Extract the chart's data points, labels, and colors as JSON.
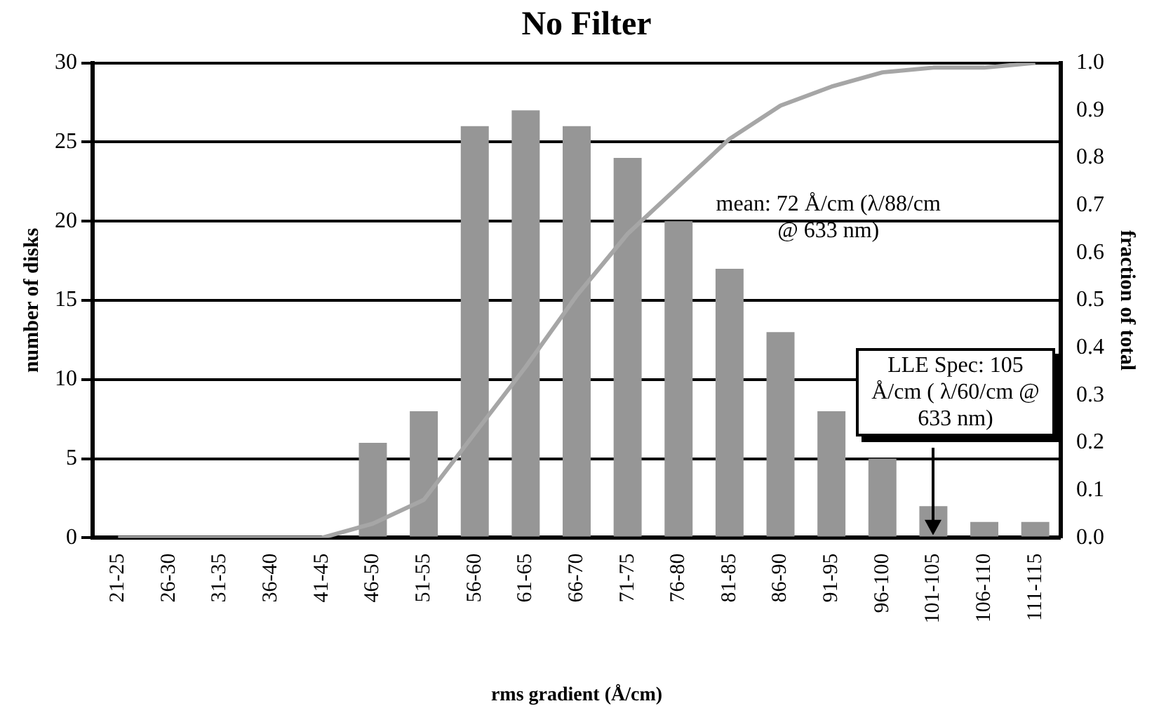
{
  "chart_data": {
    "type": "bar",
    "title": "No Filter",
    "xlabel": "rms gradient (Å/cm)",
    "ylabel": "number of disks",
    "y2label": "fraction of total",
    "categories": [
      "21-25",
      "26-30",
      "31-35",
      "36-40",
      "41-45",
      "46-50",
      "51-55",
      "56-60",
      "61-65",
      "66-70",
      "71-75",
      "76-80",
      "81-85",
      "86-90",
      "91-95",
      "96-100",
      "101-105",
      "106-110",
      "111-115"
    ],
    "series": [
      {
        "color": "#969696",
        "values": [
          0,
          0,
          0,
          0,
          0,
          6,
          8,
          26,
          27,
          26,
          24,
          20,
          17,
          13,
          8,
          5,
          2,
          1,
          1
        ]
      },
      {
        "type": "line",
        "axis": "y2",
        "color": "#a6a6a6",
        "values": [
          0,
          0,
          0,
          0,
          0,
          0.03,
          0.08,
          0.22,
          0.36,
          0.51,
          0.64,
          0.74,
          0.84,
          0.91,
          0.95,
          0.98,
          0.99,
          0.99,
          1.0
        ]
      }
    ],
    "ylim": [
      0,
      30
    ],
    "yticks": [
      0,
      5,
      10,
      15,
      20,
      25,
      30
    ],
    "y2lim": [
      0,
      1
    ],
    "y2ticks": [
      {
        "value": 0,
        "label": "0.0"
      },
      {
        "value": 0.1,
        "label": "0.1"
      },
      {
        "value": 0.2,
        "label": "0.2"
      },
      {
        "value": 0.3,
        "label": "0.3"
      },
      {
        "value": 0.4,
        "label": "0.4"
      },
      {
        "value": 0.5,
        "label": "0.5"
      },
      {
        "value": 0.6,
        "label": "0.6"
      },
      {
        "value": 0.7,
        "label": "0.7"
      },
      {
        "value": 0.8,
        "label": "0.8"
      },
      {
        "value": 0.9,
        "label": "0.9"
      },
      {
        "value": 1,
        "label": "1.0"
      }
    ],
    "grid": "y",
    "legend": false,
    "marker": "none",
    "line_style": "solid",
    "annotations": [
      "mean: 72 Å/cm (λ/88/cm @ 633 nm)",
      "LLE Spec: 105 Å/cm ( λ/60/cm @ 633 nm)"
    ]
  }
}
